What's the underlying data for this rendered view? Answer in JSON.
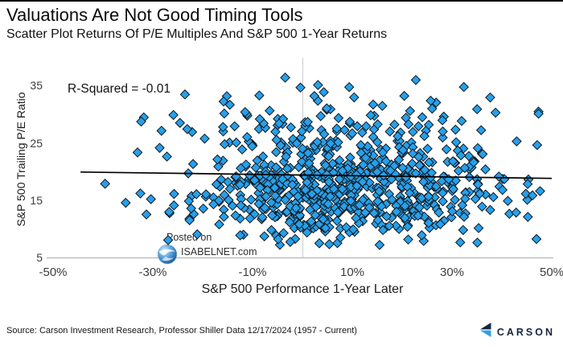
{
  "header": {
    "title": "Valuations Are Not Good Timing Tools",
    "subtitle": "Scatter Plot Returns Of P/E Multiples And S&P 500 1-Year Returns"
  },
  "chart_data": {
    "type": "scatter",
    "title": "Valuations Are Not Good Timing Tools",
    "subtitle": "Scatter Plot Returns Of P/E Multiples And S&P 500 1-Year Returns",
    "xlabel": "S&P 500 Performance 1-Year Later",
    "ylabel": "S&P 500 Trailing P/E Ratio",
    "xlim": [
      -50,
      50
    ],
    "ylim": [
      5,
      40
    ],
    "x_tick_values": [
      -50,
      -30,
      -10,
      10,
      30,
      50
    ],
    "x_ticks": [
      "-50%",
      "-30%",
      "-10%",
      "10%",
      "30%",
      "50%"
    ],
    "y_tick_values": [
      35,
      25,
      15,
      5
    ],
    "y_ticks": [
      "35",
      "25",
      "15",
      "5"
    ],
    "annotation": "R-Squared = -0.01",
    "r_squared": -0.01,
    "grid_vertical_at_x": 0,
    "legend": "none",
    "marker": {
      "shape": "diamond",
      "fill": "#27A0EA",
      "stroke": "#10181f"
    },
    "trendline": {
      "x1": -44.5,
      "y1": 19.9,
      "x2": 50,
      "y2": 18.8,
      "color": "#000000"
    },
    "point_cloud": {
      "count": 810,
      "seed": 20241217,
      "x": {
        "mean": 9,
        "std": 16,
        "min": -46,
        "max": 48
      },
      "y_mixture": [
        {
          "weight": 0.42,
          "mean": 18.6,
          "std": 3.0
        },
        {
          "weight": 0.33,
          "mean": 13.2,
          "std": 2.8
        },
        {
          "weight": 0.25,
          "mean": 26.0,
          "std": 4.4
        }
      ],
      "y_min": 6.5,
      "y_max": 39
    }
  },
  "watermark": {
    "line1": "Posted on",
    "line2": "ISABELNET.com"
  },
  "footer": {
    "source": "Source: Carson Investment Research, Professor Shiller Data 12/17/2024 (1957 - Current)",
    "brand": "CARSON"
  },
  "colors": {
    "point_fill": "#27A0EA",
    "axis_line": "#b5b5b5",
    "gridline": "#cccccc",
    "brand_dark": "#16253f",
    "brand_light": "#2e9fe8"
  }
}
